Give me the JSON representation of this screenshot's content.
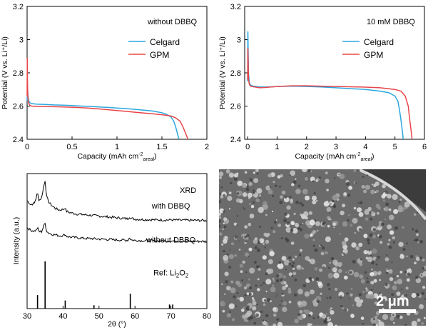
{
  "colors": {
    "celgard": "#2aa7df",
    "gpm": "#e8464a",
    "xrd": "#000000",
    "frame": "#000000"
  },
  "chart_data": [
    {
      "type": "line",
      "title": "without DBBQ",
      "xlabel": "Capacity (mAh cm",
      "xlabel_sup": "-2",
      "xlabel_sub": "areal",
      "xlabel_close": ")",
      "ylabel": "Potential (V vs. Li⁺/Li)",
      "xlim": [
        0,
        2
      ],
      "ylim": [
        2.4,
        3.2
      ],
      "xticks": [
        0,
        0.5,
        1,
        1.5,
        2
      ],
      "xtick_labels": [
        "0",
        "0.5",
        "1",
        "1.5",
        "2"
      ],
      "yticks": [
        2.4,
        2.6,
        2.8,
        3.0,
        3.2
      ],
      "ytick_labels": [
        "2.4",
        "2.6",
        "2.8",
        "3",
        "3.2"
      ],
      "legend_position": "top-right",
      "series": [
        {
          "name": "Celgard",
          "color_key": "celgard",
          "x": [
            0,
            0.005,
            0.01,
            0.015,
            0.02,
            0.03,
            0.05,
            0.1,
            0.2,
            0.3,
            0.4,
            0.5,
            0.6,
            0.7,
            0.8,
            0.9,
            1.0,
            1.1,
            1.2,
            1.3,
            1.4,
            1.5,
            1.55,
            1.6,
            1.63,
            1.65,
            1.67,
            1.69
          ],
          "y": [
            2.63,
            2.7,
            2.66,
            2.64,
            2.63,
            2.62,
            2.615,
            2.612,
            2.61,
            2.607,
            2.605,
            2.603,
            2.6,
            2.598,
            2.595,
            2.592,
            2.588,
            2.585,
            2.58,
            2.575,
            2.57,
            2.56,
            2.55,
            2.535,
            2.51,
            2.48,
            2.44,
            2.4
          ]
        },
        {
          "name": "GPM",
          "color_key": "gpm",
          "x": [
            0,
            0.002,
            0.004,
            0.008,
            0.015,
            0.03,
            0.05,
            0.1,
            0.2,
            0.3,
            0.4,
            0.5,
            0.6,
            0.7,
            0.8,
            0.9,
            1.0,
            1.1,
            1.2,
            1.3,
            1.4,
            1.5,
            1.6,
            1.65,
            1.7,
            1.73,
            1.76,
            1.79
          ],
          "y": [
            2.66,
            2.89,
            2.76,
            2.66,
            2.62,
            2.605,
            2.6,
            2.598,
            2.597,
            2.596,
            2.595,
            2.593,
            2.59,
            2.587,
            2.583,
            2.578,
            2.573,
            2.568,
            2.563,
            2.558,
            2.553,
            2.548,
            2.54,
            2.53,
            2.51,
            2.48,
            2.44,
            2.4
          ]
        }
      ]
    },
    {
      "type": "line",
      "title": "10 mM DBBQ",
      "xlabel": "Capacity (mAh cm",
      "xlabel_sup": "-2",
      "xlabel_sub": "areal",
      "xlabel_close": ")",
      "ylabel": "Potential (V vs. Li⁺/Li)",
      "xlim": [
        -0.1,
        6
      ],
      "ylim": [
        2.4,
        3.2
      ],
      "xticks": [
        0,
        1,
        2,
        3,
        4,
        5,
        6
      ],
      "xtick_labels": [
        "0",
        "1",
        "2",
        "3",
        "4",
        "5",
        "6"
      ],
      "yticks": [
        2.4,
        2.6,
        2.8,
        3.0,
        3.2
      ],
      "ytick_labels": [
        "2.4",
        "2.6",
        "2.8",
        "3",
        "3.2"
      ],
      "legend_position": "top-right",
      "series": [
        {
          "name": "Celgard",
          "color_key": "celgard",
          "x": [
            0,
            0.01,
            0.03,
            0.06,
            0.1,
            0.2,
            0.4,
            0.6,
            0.8,
            1.0,
            1.5,
            2.0,
            2.5,
            3.0,
            3.5,
            4.0,
            4.5,
            4.8,
            5.0,
            5.1,
            5.15,
            5.2,
            5.25,
            5.28
          ],
          "y": [
            2.75,
            3.05,
            2.8,
            2.74,
            2.725,
            2.72,
            2.715,
            2.715,
            2.716,
            2.718,
            2.72,
            2.718,
            2.715,
            2.71,
            2.705,
            2.7,
            2.69,
            2.68,
            2.66,
            2.63,
            2.58,
            2.52,
            2.45,
            2.4
          ]
        },
        {
          "name": "GPM",
          "color_key": "gpm",
          "x": [
            0,
            0.01,
            0.03,
            0.06,
            0.1,
            0.2,
            0.4,
            0.6,
            0.8,
            1.0,
            1.5,
            2.0,
            2.5,
            3.0,
            3.5,
            4.0,
            4.5,
            5.0,
            5.2,
            5.35,
            5.45,
            5.5,
            5.55,
            5.58
          ],
          "y": [
            2.76,
            2.95,
            2.76,
            2.73,
            2.72,
            2.716,
            2.71,
            2.712,
            2.715,
            2.718,
            2.722,
            2.722,
            2.72,
            2.718,
            2.716,
            2.714,
            2.71,
            2.7,
            2.69,
            2.66,
            2.6,
            2.52,
            2.45,
            2.4
          ]
        }
      ]
    },
    {
      "type": "line",
      "title": "XRD",
      "xlabel": "2θ (°)",
      "ylabel": "Intensity (a.u.)",
      "xlim": [
        30,
        80
      ],
      "xticks": [
        30,
        40,
        50,
        60,
        70,
        80
      ],
      "xtick_labels": [
        "30",
        "40",
        "50",
        "60",
        "70",
        "80"
      ],
      "series": [
        {
          "name": "with DBBQ",
          "label_at": [
            70,
            0.74
          ],
          "x": [
            30,
            31,
            32,
            32.5,
            32.9,
            33.3,
            34,
            34.6,
            35.0,
            35.4,
            36,
            37,
            38,
            39,
            40,
            40.5,
            41,
            42,
            44,
            46,
            48,
            50,
            52,
            54,
            56,
            58,
            58.5,
            59,
            60,
            62,
            65,
            68,
            70,
            72,
            75,
            78,
            80
          ],
          "y": [
            0.8,
            0.77,
            0.78,
            0.82,
            0.86,
            0.8,
            0.82,
            0.9,
            0.95,
            0.83,
            0.79,
            0.76,
            0.74,
            0.73,
            0.735,
            0.745,
            0.72,
            0.71,
            0.7,
            0.695,
            0.69,
            0.685,
            0.68,
            0.675,
            0.67,
            0.665,
            0.68,
            0.668,
            0.662,
            0.66,
            0.658,
            0.656,
            0.657,
            0.655,
            0.654,
            0.653,
            0.652
          ]
        },
        {
          "name": "without DBBQ",
          "label_at": [
            70,
            0.49
          ],
          "x": [
            30,
            31,
            32,
            32.5,
            32.9,
            33.3,
            34,
            34.6,
            35.0,
            35.4,
            36,
            37,
            38,
            39,
            40,
            40.5,
            41,
            42,
            44,
            46,
            48,
            50,
            52,
            54,
            56,
            58,
            58.5,
            59,
            60,
            62,
            65,
            68,
            70,
            72,
            75,
            78,
            80
          ],
          "y": [
            0.6,
            0.58,
            0.575,
            0.58,
            0.6,
            0.57,
            0.57,
            0.61,
            0.63,
            0.575,
            0.56,
            0.55,
            0.545,
            0.54,
            0.54,
            0.55,
            0.535,
            0.53,
            0.525,
            0.52,
            0.518,
            0.515,
            0.513,
            0.51,
            0.508,
            0.506,
            0.525,
            0.508,
            0.505,
            0.503,
            0.502,
            0.501,
            0.5,
            0.5,
            0.499,
            0.498,
            0.497
          ]
        },
        {
          "name": "Ref: Li",
          "name_sub": "2",
          "name_tail": "O",
          "name_sub2": "2",
          "type": "sticks",
          "label_at": [
            70,
            0.245
          ],
          "x": [
            32.9,
            35.0,
            40.6,
            48.6,
            58.7,
            69.6,
            70.5
          ],
          "y": [
            0.1,
            0.35,
            0.06,
            0.025,
            0.11,
            0.03,
            0.03
          ]
        }
      ]
    }
  ],
  "image": {
    "scale_label": "2 μm"
  }
}
